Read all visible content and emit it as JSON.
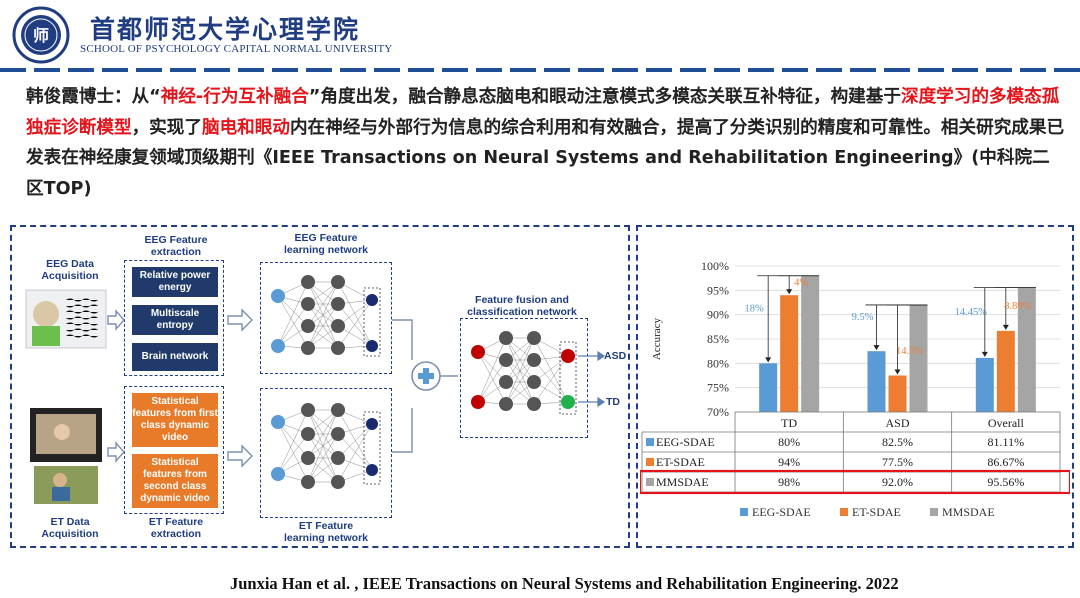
{
  "header": {
    "university_cn": "首都师范大学心理学院",
    "university_en": "SCHOOL OF PSYCHOLOGY   CAPITAL NORMAL UNIVERSITY",
    "logo_text": "师",
    "colors": {
      "brand": "#1f3d80",
      "highlight": "#e5141b"
    }
  },
  "summary": {
    "s1": "韩俊霞博士：从“",
    "s2": "神经-行为互补融合",
    "s3": "”角度出发，融合静息态脑电和眼动注意模式多模态关联互补特征，构建基于",
    "s4": "深度学习的多模态孤独症诊断模型",
    "s5": "，实现了",
    "s6": "脑电和眼动",
    "s7": "内在神经与外部行为信息的综合利用和有效融合，提高了分类识别的精度和可靠性。相关研究成果已发表在神经康复领域顶级期刊《IEEE Transactions on Neural Systems and Rehabilitation Engineering》(中科院二区TOP)"
  },
  "diagram": {
    "eeg_acq": "EEG Data\nAcquisition",
    "eeg_feat_title": "EEG Feature\nextraction",
    "eeg_features": [
      "Relative power energy",
      "Multiscale entropy",
      "Brain network"
    ],
    "eeg_net_title": "EEG Feature\nlearning network",
    "et_features": [
      "Statistical features from first class dynamic video",
      "Statistical features from second class dynamic video"
    ],
    "et_acq": "ET Data\nAcquisition",
    "et_feat_title": "ET Feature\nextraction",
    "et_net_title": "ET Feature\nlearning network",
    "fusion_title": "Feature fusion and\nclassification network",
    "out_asd": "ASD",
    "out_td": "TD"
  },
  "chart_data": {
    "type": "bar",
    "ylabel": "Accuracy",
    "ylim": [
      70,
      100
    ],
    "yticks": [
      "70%",
      "75%",
      "80%",
      "85%",
      "90%",
      "95%",
      "100%"
    ],
    "categories": [
      "TD",
      "ASD",
      "Overall"
    ],
    "series": [
      {
        "name": "EEG-SDAE",
        "color": "#5b9bd5",
        "values": [
          80,
          82.5,
          81.11
        ],
        "labels": [
          "80%",
          "82.5%",
          "81.11%"
        ]
      },
      {
        "name": "ET-SDAE",
        "color": "#ed7d31",
        "values": [
          94,
          77.5,
          86.67
        ],
        "labels": [
          "94%",
          "77.5%",
          "86.67%"
        ]
      },
      {
        "name": "MMSDAE",
        "color": "#a5a5a5",
        "values": [
          98,
          92.0,
          95.56
        ],
        "labels": [
          "98%",
          "92.0%",
          "95.56%"
        ]
      }
    ],
    "annotations": {
      "blue_gap": [
        "18%",
        "9.5%",
        "14.45%"
      ],
      "orange_gap": [
        "4%",
        "14.5%",
        "8.89%"
      ]
    },
    "highlighted_row": "MMSDAE",
    "legend": "bottom"
  },
  "citation": "Junxia Han et al. , IEEE Transactions on Neural Systems and Rehabilitation Engineering. 2022"
}
